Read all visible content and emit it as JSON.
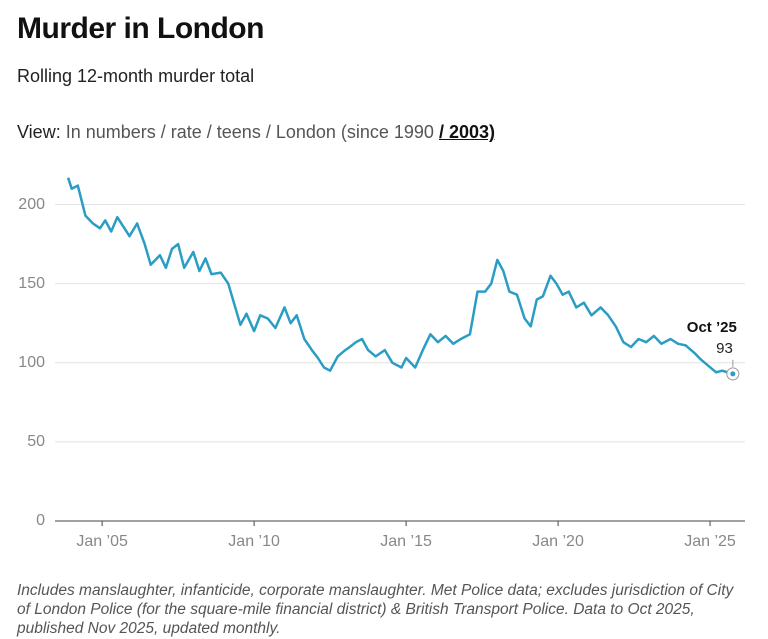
{
  "chart_data": {
    "type": "line",
    "title": "Murder in London",
    "subtitle": "Rolling 12-month murder total",
    "annotation": "Oct ’25",
    "x": [
      2003.88,
      2004.0,
      2004.2,
      2004.45,
      2004.7,
      2004.93,
      2005.1,
      2005.3,
      2005.5,
      2005.7,
      2005.9,
      2006.15,
      2006.4,
      2006.6,
      2006.9,
      2007.1,
      2007.3,
      2007.5,
      2007.7,
      2008.0,
      2008.2,
      2008.4,
      2008.6,
      2008.9,
      2009.15,
      2009.35,
      2009.55,
      2009.75,
      2010.0,
      2010.2,
      2010.45,
      2010.7,
      2011.0,
      2011.2,
      2011.4,
      2011.65,
      2011.9,
      2012.1,
      2012.3,
      2012.5,
      2012.75,
      2013.0,
      2013.15,
      2013.35,
      2013.55,
      2013.75,
      2014.0,
      2014.3,
      2014.55,
      2014.85,
      2015.0,
      2015.3,
      2015.55,
      2015.8,
      2016.05,
      2016.3,
      2016.55,
      2016.8,
      2017.1,
      2017.35,
      2017.6,
      2017.8,
      2018.0,
      2018.2,
      2018.4,
      2018.65,
      2018.9,
      2019.1,
      2019.3,
      2019.5,
      2019.75,
      2019.95,
      2020.15,
      2020.35,
      2020.6,
      2020.85,
      2021.1,
      2021.4,
      2021.65,
      2021.9,
      2022.15,
      2022.4,
      2022.65,
      2022.9,
      2023.15,
      2023.4,
      2023.7,
      2023.95,
      2024.2,
      2024.5,
      2024.7,
      2024.95,
      2025.2,
      2025.4,
      2025.75
    ],
    "series": [
      {
        "color": "#2a9dc4",
        "values": [
          217,
          210,
          212,
          193,
          188,
          185,
          190,
          183,
          192,
          186,
          180,
          188,
          175,
          162,
          168,
          160,
          172,
          175,
          160,
          170,
          158,
          166,
          156,
          157,
          150,
          137,
          124,
          131,
          120,
          130,
          128,
          122,
          135,
          125,
          130,
          115,
          108,
          103,
          97,
          95,
          104,
          108,
          110,
          113,
          115,
          108,
          104,
          108,
          100,
          97,
          103,
          97,
          108,
          118,
          113,
          117,
          112,
          115,
          118,
          145,
          145,
          150,
          165,
          158,
          145,
          143,
          128,
          123,
          140,
          142,
          155,
          150,
          143,
          145,
          135,
          138,
          130,
          135,
          130,
          123,
          113,
          110,
          115,
          113,
          117,
          112,
          115,
          112,
          111,
          106,
          102,
          98,
          94,
          95,
          93
        ]
      }
    ],
    "xlim": [
      2003.45,
      2026.15
    ],
    "xticks": [
      {
        "value": 2005,
        "label": "Jan ’05"
      },
      {
        "value": 2010,
        "label": "Jan ’10"
      },
      {
        "value": 2015,
        "label": "Jan ’15"
      },
      {
        "value": 2020,
        "label": "Jan ’20"
      },
      {
        "value": 2025,
        "label": "Jan ’25"
      }
    ],
    "ylim": [
      0,
      225
    ],
    "yticks": [
      0,
      50,
      100,
      150,
      200
    ],
    "grid": true
  },
  "view": {
    "label": "View:",
    "options": [
      "In numbers / rate / teens / London (since 1990",
      "/ 2003)"
    ]
  },
  "note": "Includes manslaughter, infanticide, corporate manslaughter. Met Police data; excludes jurisdiction of City of London Police (for the square-mile financial district) & British Transport Police. Data to Oct 2025, published Nov 2025, updated monthly."
}
